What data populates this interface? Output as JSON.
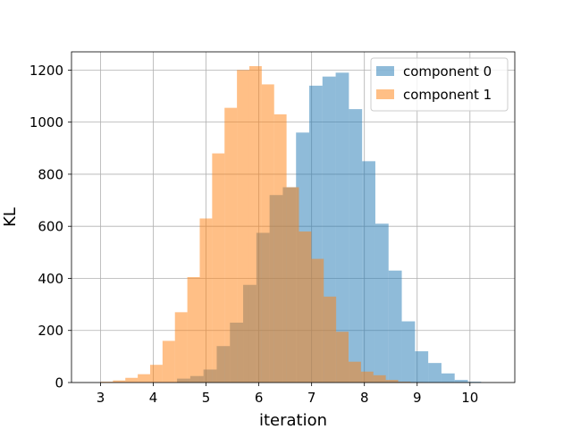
{
  "chart_data": {
    "type": "bar",
    "subtype": "histogram",
    "xlabel": "iteration",
    "ylabel": "KL",
    "xlim": [
      2.45,
      10.85
    ],
    "ylim": [
      0,
      1270
    ],
    "xticks": [
      3,
      4,
      5,
      6,
      7,
      8,
      9,
      10
    ],
    "yticks": [
      0,
      200,
      400,
      600,
      800,
      1000,
      1200
    ],
    "grid": true,
    "legend_position": "top-right",
    "series": [
      {
        "name": "component 0",
        "color": "#1f77b4",
        "alpha": 0.5,
        "bin_start": 4.45,
        "bin_width": 0.2505,
        "counts": [
          15,
          25,
          50,
          140,
          230,
          375,
          575,
          720,
          750,
          960,
          1140,
          1175,
          1190,
          1050,
          850,
          610,
          430,
          235,
          120,
          75,
          35,
          10,
          3
        ]
      },
      {
        "name": "component 1",
        "color": "#ff7f0e",
        "alpha": 0.5,
        "bin_start": 3.0,
        "bin_width": 0.235,
        "counts": [
          3,
          8,
          18,
          32,
          68,
          160,
          270,
          405,
          630,
          880,
          1055,
          1200,
          1215,
          1145,
          1030,
          750,
          580,
          475,
          330,
          195,
          80,
          42,
          28,
          10,
          3,
          1
        ]
      }
    ]
  }
}
